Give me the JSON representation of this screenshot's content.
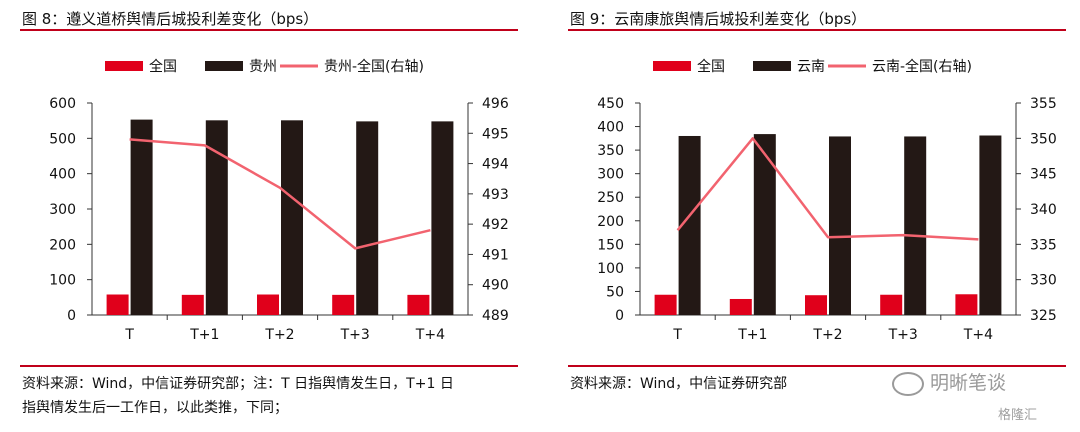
{
  "figures": [
    {
      "title": "图 8：遵义道桥舆情后城投利差变化（bps）",
      "source_lines": [
        "资料来源：Wind，中信证券研究部；注：T 日指舆情发生日，T+1 日",
        "指舆情发生后一工作日，以此类推，下同；"
      ]
    },
    {
      "title": "图 9：云南康旅舆情后城投利差变化（bps）",
      "source_lines": [
        "资料来源：Wind，中信证券研究部"
      ]
    }
  ],
  "watermark": {
    "text": "明晰笔谈",
    "icon": "wechat-icon"
  },
  "logo": {
    "text": "格隆汇"
  },
  "colors": {
    "national_bar": "#e0001b",
    "province_bar": "#231815",
    "spread_line": "#f2636f",
    "rule": "#c0001a"
  },
  "chart_data": [
    {
      "type": "bar",
      "categories": [
        "T",
        "T+1",
        "T+2",
        "T+3",
        "T+4"
      ],
      "series": [
        {
          "name": "全国",
          "kind": "bar",
          "axis": "left",
          "values": [
            58,
            57,
            58,
            57,
            57
          ]
        },
        {
          "name": "贵州",
          "kind": "bar",
          "axis": "left",
          "values": [
            553,
            551,
            551,
            548,
            548
          ]
        },
        {
          "name": "贵州-全国(右轴)",
          "kind": "line",
          "axis": "right",
          "values": [
            494.8,
            494.6,
            493.2,
            491.2,
            491.8
          ]
        }
      ],
      "ylim": [
        0,
        600
      ],
      "yticks": [
        0,
        100,
        200,
        300,
        400,
        500,
        600
      ],
      "y2lim": [
        489,
        496
      ],
      "y2ticks": [
        489,
        490,
        491,
        492,
        493,
        494,
        495,
        496
      ],
      "legend": "top",
      "grid": false
    },
    {
      "type": "bar",
      "categories": [
        "T",
        "T+1",
        "T+2",
        "T+3",
        "T+4"
      ],
      "series": [
        {
          "name": "全国",
          "kind": "bar",
          "axis": "left",
          "values": [
            43,
            34,
            42,
            43,
            44
          ]
        },
        {
          "name": "云南",
          "kind": "bar",
          "axis": "left",
          "values": [
            380,
            384,
            379,
            379,
            381
          ]
        },
        {
          "name": "云南-全国(右轴)",
          "kind": "line",
          "axis": "right",
          "values": [
            337,
            350,
            336,
            336.3,
            335.7
          ]
        }
      ],
      "ylim": [
        0,
        450
      ],
      "yticks": [
        0,
        50,
        100,
        150,
        200,
        250,
        300,
        350,
        400,
        450
      ],
      "y2lim": [
        325,
        355
      ],
      "y2ticks": [
        325,
        330,
        335,
        340,
        345,
        350,
        355
      ],
      "legend": "top",
      "grid": false
    }
  ]
}
